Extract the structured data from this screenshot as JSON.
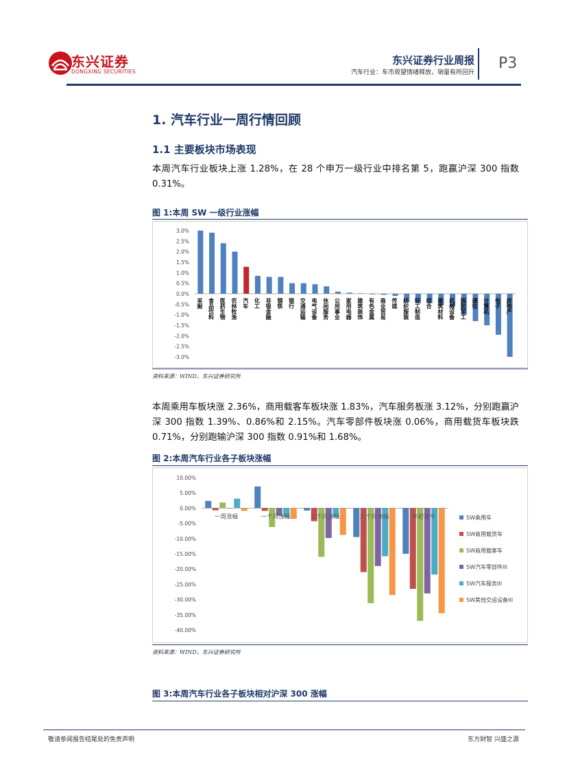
{
  "header": {
    "brand_cn": "东兴证券",
    "brand_en": "DONGXING SECURITIES",
    "report_title": "东兴证券行业周报",
    "report_subtitle": "汽车行业：车市观望情绪释放，销量有所回升",
    "page_number": "P3"
  },
  "section": {
    "title": "1. 汽车行业一周行情回顾",
    "subsection": "1.1 主要板块市场表现",
    "para1": "本周汽车行业板块上涨 1.28%，在 28 个申万一级行业中排名第 5，跑赢沪深 300 指数 0.31%。",
    "para2": "本周乘用车板块涨 2.36%，商用载客车板块涨 1.83%，汽车服务板涨 3.12%，分别跑赢沪深 300 指数 1.39%、0.86%和 2.15%。汽车零部件板块涨 0.06%，商用载货车板块跌 0.71%，分别跑输沪深 300 指数 0.91%和 1.68%。"
  },
  "figures": {
    "fig1_title": "图 1:本周 SW 一级行业涨幅",
    "fig1_source": "资料来源：WIND，东兴证券研究所",
    "fig2_title": "图 2:本周汽车行业各子板块涨幅",
    "fig2_source": "资料来源：WIND，东兴证券研究所",
    "fig3_title": "图 3:本周汽车行业各子板块相对沪深 300 涨幅"
  },
  "footer": {
    "left": "敬请参阅报告结尾处的免责声明",
    "right": "东方财智 兴盛之源"
  },
  "colors": {
    "brand_red": "#c8141e",
    "navy": "#1f3a68",
    "bar_blue": "#4f81bd",
    "bar_highlight": "#c0272d"
  },
  "chart_data": [
    {
      "type": "bar",
      "categories": [
        "采掘",
        "食品饮料",
        "医药生物",
        "农林牧渔",
        "汽车",
        "化工",
        "非银金融",
        "钢铁",
        "银行",
        "交通运输",
        "电气设备",
        "休闲服务",
        "公用事业",
        "家用电器",
        "建筑装饰",
        "有色金属",
        "商业贸易",
        "传媒",
        "纺织服装",
        "轻工制造",
        "综合",
        "建筑材料",
        "机械设备",
        "国防军工",
        "通信",
        "计算机",
        "电子",
        "房地产"
      ],
      "values": [
        3.0,
        2.9,
        2.4,
        2.0,
        1.28,
        0.85,
        0.8,
        0.8,
        0.5,
        0.5,
        0.45,
        0.35,
        0.1,
        0.05,
        0.02,
        -0.03,
        -0.05,
        -0.1,
        -0.4,
        -0.45,
        -0.45,
        -0.55,
        -0.6,
        -1.0,
        -1.3,
        -1.5,
        -1.95,
        -3.0
      ],
      "highlight": "汽车",
      "ylim": [
        -3.0,
        3.0
      ],
      "yticks": [
        "3.0%",
        "2.5%",
        "2.0%",
        "1.5%",
        "1.0%",
        "0.5%",
        "0.0%",
        "-0.5%",
        "-1.0%",
        "-1.5%",
        "-2.0%",
        "-2.5%",
        "-3.0%"
      ],
      "grid": false
    },
    {
      "type": "bar",
      "categories": [
        "一周涨幅",
        "一个月涨幅",
        "三个月涨幅",
        "六个月涨幅",
        "年初至今"
      ],
      "series": [
        {
          "name": "SW乘用车",
          "color": "#4f81bd",
          "values": [
            2.36,
            7.1,
            -0.8,
            -9.5,
            -15.0
          ]
        },
        {
          "name": "SW商用载货车",
          "color": "#c0504d",
          "values": [
            -0.71,
            -0.9,
            -4.3,
            -21.0,
            -26.5
          ]
        },
        {
          "name": "SW商用载客车",
          "color": "#9bbb59",
          "values": [
            1.83,
            -6.2,
            -16.0,
            -31.2,
            -37.0
          ]
        },
        {
          "name": "SW汽车零部件III",
          "color": "#8064a2",
          "values": [
            0.06,
            -2.5,
            -9.8,
            -19.0,
            -28.0
          ]
        },
        {
          "name": "SW汽车服务III",
          "color": "#4bacc6",
          "values": [
            3.12,
            -3.0,
            -3.0,
            -15.8,
            -21.8
          ]
        },
        {
          "name": "SW其他交运设备III",
          "color": "#f79646",
          "values": [
            -0.9,
            -3.5,
            -8.8,
            -28.5,
            -34.5
          ]
        }
      ],
      "ylim": [
        -40,
        10
      ],
      "yticks": [
        "10.00%",
        "5.00%",
        "0.00%",
        "-5.00%",
        "-10.00%",
        "-15.00%",
        "-20.00%",
        "-25.00%",
        "-30.00%",
        "-35.00%",
        "-40.00%"
      ],
      "legend": "right",
      "grid": false
    }
  ]
}
